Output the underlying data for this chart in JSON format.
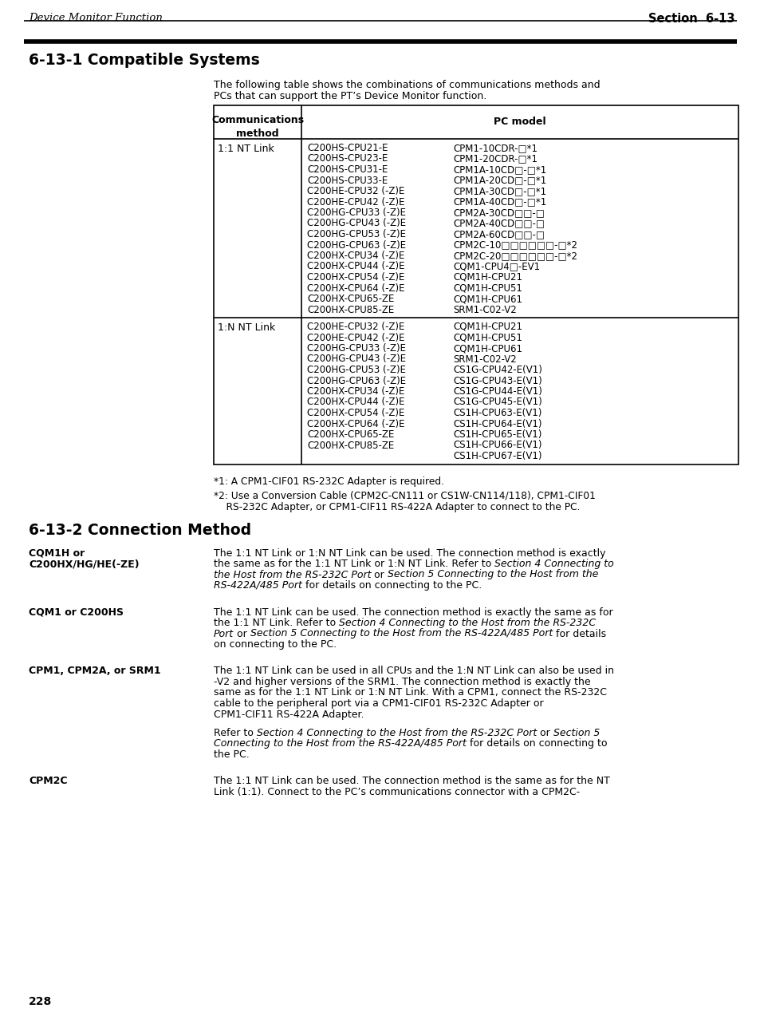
{
  "page_num": "228",
  "header_left": "Device Monitor Function",
  "header_right": "Section  6-13",
  "section_title": "6-13-1 Compatible Systems",
  "intro1": "The following table shows the combinations of communications methods and",
  "intro2": "PCs that can support the PT’s Device Monitor function.",
  "table_header_col1": "Communications\nmethod",
  "table_header_col2": "PC model",
  "row1_method": "1:1 NT Link",
  "row1_left": [
    "C200HS-CPU21-E",
    "C200HS-CPU23-E",
    "C200HS-CPU31-E",
    "C200HS-CPU33-E",
    "C200HE-CPU32 (-Z)E",
    "C200HE-CPU42 (-Z)E",
    "C200HG-CPU33 (-Z)E",
    "C200HG-CPU43 (-Z)E",
    "C200HG-CPU53 (-Z)E",
    "C200HG-CPU63 (-Z)E",
    "C200HX-CPU34 (-Z)E",
    "C200HX-CPU44 (-Z)E",
    "C200HX-CPU54 (-Z)E",
    "C200HX-CPU64 (-Z)E",
    "C200HX-CPU65-ZE",
    "C200HX-CPU85-ZE"
  ],
  "row1_right": [
    "CPM1-10CDR-□*1",
    "CPM1-20CDR-□*1",
    "CPM1A-10CD□-□*1",
    "CPM1A-20CD□-□*1",
    "CPM1A-30CD□-□*1",
    "CPM1A-40CD□-□*1",
    "CPM2A-30CD□□-□",
    "CPM2A-40CD□□-□",
    "CPM2A-60CD□□-□",
    "CPM2C-10□□□□□□-□*2",
    "CPM2C-20□□□□□□-□*2",
    "CQM1-CPU4□-EV1",
    "CQM1H-CPU21",
    "CQM1H-CPU51",
    "CQM1H-CPU61",
    "SRM1-C02-V2"
  ],
  "row2_method": "1:N NT Link",
  "row2_left": [
    "C200HE-CPU32 (-Z)E",
    "C200HE-CPU42 (-Z)E",
    "C200HG-CPU33 (-Z)E",
    "C200HG-CPU43 (-Z)E",
    "C200HG-CPU53 (-Z)E",
    "C200HG-CPU63 (-Z)E",
    "C200HX-CPU34 (-Z)E",
    "C200HX-CPU44 (-Z)E",
    "C200HX-CPU54 (-Z)E",
    "C200HX-CPU64 (-Z)E",
    "C200HX-CPU65-ZE",
    "C200HX-CPU85-ZE"
  ],
  "row2_right": [
    "CQM1H-CPU21",
    "CQM1H-CPU51",
    "CQM1H-CPU61",
    "SRM1-C02-V2",
    "CS1G-CPU42-E(V1)",
    "CS1G-CPU43-E(V1)",
    "CS1G-CPU44-E(V1)",
    "CS1G-CPU45-E(V1)",
    "CS1H-CPU63-E(V1)",
    "CS1H-CPU64-E(V1)",
    "CS1H-CPU65-E(V1)",
    "CS1H-CPU66-E(V1)",
    "CS1H-CPU67-E(V1)"
  ],
  "fn1": "*1: A CPM1-CIF01 RS-232C Adapter is required.",
  "fn2a": "*2: Use a Conversion Cable (CPM2C-CN111 or CS1W-CN114/118), CPM1-CIF01",
  "fn2b": "    RS-232C Adapter, or CPM1-CIF11 RS-422A Adapter to connect to the PC.",
  "sec2_title": "6-13-2 Connection Method",
  "blk1_label1": "CQM1H or",
  "blk1_label2": "C200HX/HG/HE(-ZE)",
  "blk1_text": [
    [
      "The 1:1 NT Link or 1:N NT Link can be used. The connection method is exactly",
      false
    ],
    [
      "the same as for the 1:1 NT Link or 1:N NT Link. Refer to ",
      false
    ],
    [
      "Section 4 Connecting to",
      true
    ],
    [
      "the Host from the RS-232C Port",
      true
    ],
    [
      " or ",
      false
    ],
    [
      "Section 5 Connecting to the Host from the",
      true
    ],
    [
      "RS-422A/485 Port",
      true
    ],
    [
      " for details on connecting to the PC.",
      false
    ]
  ],
  "blk1_lines": [
    "The 1:1 NT Link or 1:N NT Link can be used. The connection method is exactly",
    "the same as for the 1:1 NT Link or 1:N NT Link. Refer to †Section 4 Connecting to",
    "†the Host from the RS-232C Port† or †Section 5 Connecting to the Host from the",
    "†RS-422A/485 Port† for details on connecting to the PC."
  ],
  "blk2_label": "CQM1 or C200HS",
  "blk2_lines": [
    "The 1:1 NT Link can be used. The connection method is exactly the same as for",
    "the 1:1 NT Link. Refer to †Section 4 Connecting to the Host from the RS-232C",
    "†Port† or †Section 5 Connecting to the Host from the RS-422A/485 Port† for details",
    "on connecting to the PC."
  ],
  "blk3_label": "CPM1, CPM2A, or SRM1",
  "blk3_lines": [
    "The 1:1 NT Link can be used in all CPUs and the 1:N NT Link can also be used in",
    "-V2 and higher versions of the SRM1. The connection method is exactly the",
    "same as for the 1:1 NT Link or 1:N NT Link. With a CPM1, connect the RS-232C",
    "cable to the peripheral port via a CPM1-CIF01 RS-232C Adapter or",
    "CPM1-CIF11 RS-422A Adapter."
  ],
  "blk3_lines2": [
    "Refer to †Section 4 Connecting to the Host from the RS-232C Port† or †Section 5",
    "†Connecting to the Host from the RS-422A/485 Port† for details on connecting to",
    "the PC."
  ],
  "blk4_label": "CPM2C",
  "blk4_lines": [
    "The 1:1 NT Link can be used. The connection method is the same as for the NT",
    "Link (1:1). Connect to the PC’s communications connector with a CPM2C-"
  ]
}
